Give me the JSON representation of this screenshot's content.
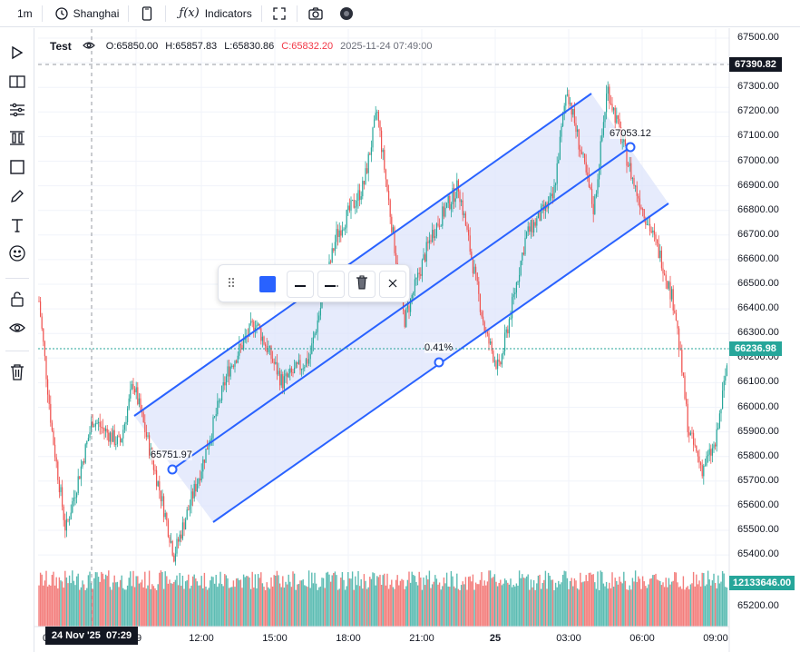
{
  "toolbar": {
    "interval": "1m",
    "timezone": "Shanghai",
    "indicators_label": "Indicators"
  },
  "legend": {
    "symbol": "Test",
    "open": "O:65850.00",
    "high": "H:65857.83",
    "low": "L:65830.86",
    "close": "C:65832.20",
    "datetime": "2025-11-24 07:49:00"
  },
  "price_axis": {
    "ticks": [
      "67500.00",
      "67400.00",
      "67300.00",
      "67200.00",
      "67100.00",
      "67000.00",
      "66900.00",
      "66800.00",
      "66700.00",
      "66600.00",
      "66500.00",
      "66400.00",
      "66300.00",
      "66200.00",
      "66100.00",
      "66000.00",
      "65900.00",
      "65800.00",
      "65700.00",
      "65600.00",
      "65500.00",
      "65400.00",
      "65200.00"
    ],
    "crosshair_price": "67390.82",
    "last_price": "66236.98",
    "volume_label": "12133646.00"
  },
  "time_axis": {
    "ticks": [
      "0",
      "09",
      "12:00",
      "15:00",
      "18:00",
      "21:00",
      "25",
      "03:00",
      "06:00",
      "09:00"
    ],
    "crosshair_time": "24 Nov '25  07:29"
  },
  "channel": {
    "start_price_label": "65751.97",
    "end_price_label": "67053.12",
    "percent_label": "0.41%"
  },
  "drawing_toolbar": {
    "color": "#2962ff"
  },
  "colors": {
    "up": "#26a69a",
    "down": "#ef5350",
    "channel_line": "#2962ff",
    "channel_fill": "#dbe3fb",
    "last_price_bg": "#26a69a",
    "crosshair_bg": "#131722"
  },
  "chart_data": {
    "type": "candlestick",
    "title": "",
    "ylim": [
      65160,
      67540
    ],
    "x_range": [
      "2025-11-24 07:29",
      "2025-11-25 09:00"
    ],
    "approx_close_path": [
      {
        "t": "2025-11-24 07:30",
        "v": 66450
      },
      {
        "t": "2025-11-24 08:00",
        "v": 65900
      },
      {
        "t": "2025-11-24 08:30",
        "v": 65500
      },
      {
        "t": "2025-11-24 09:30",
        "v": 65950
      },
      {
        "t": "2025-11-24 10:30",
        "v": 65850
      },
      {
        "t": "2025-11-24 11:00",
        "v": 66100
      },
      {
        "t": "2025-11-24 12:00",
        "v": 65650
      },
      {
        "t": "2025-11-24 12:30",
        "v": 65400
      },
      {
        "t": "2025-11-24 13:30",
        "v": 65750
      },
      {
        "t": "2025-11-24 14:30",
        "v": 66150
      },
      {
        "t": "2025-11-24 15:30",
        "v": 66350
      },
      {
        "t": "2025-11-24 16:30",
        "v": 66100
      },
      {
        "t": "2025-11-24 17:30",
        "v": 66200
      },
      {
        "t": "2025-11-24 18:30",
        "v": 66700
      },
      {
        "t": "2025-11-24 19:30",
        "v": 66900
      },
      {
        "t": "2025-11-24 20:00",
        "v": 67200
      },
      {
        "t": "2025-11-24 21:00",
        "v": 66350
      },
      {
        "t": "2025-11-24 22:00",
        "v": 66700
      },
      {
        "t": "2025-11-24 23:00",
        "v": 66900
      },
      {
        "t": "2025-11-25 00:00",
        "v": 66300
      },
      {
        "t": "2025-11-25 00:30",
        "v": 66150
      },
      {
        "t": "2025-11-25 01:30",
        "v": 66700
      },
      {
        "t": "2025-11-25 02:30",
        "v": 66850
      },
      {
        "t": "2025-11-25 03:00",
        "v": 67300
      },
      {
        "t": "2025-11-25 04:00",
        "v": 66800
      },
      {
        "t": "2025-11-25 04:30",
        "v": 67300
      },
      {
        "t": "2025-11-25 05:30",
        "v": 66900
      },
      {
        "t": "2025-11-25 06:30",
        "v": 66600
      },
      {
        "t": "2025-11-25 07:00",
        "v": 66400
      },
      {
        "t": "2025-11-25 07:30",
        "v": 65900
      },
      {
        "t": "2025-11-25 08:00",
        "v": 65750
      },
      {
        "t": "2025-11-25 08:30",
        "v": 65850
      },
      {
        "t": "2025-11-25 09:00",
        "v": 66237
      }
    ]
  }
}
